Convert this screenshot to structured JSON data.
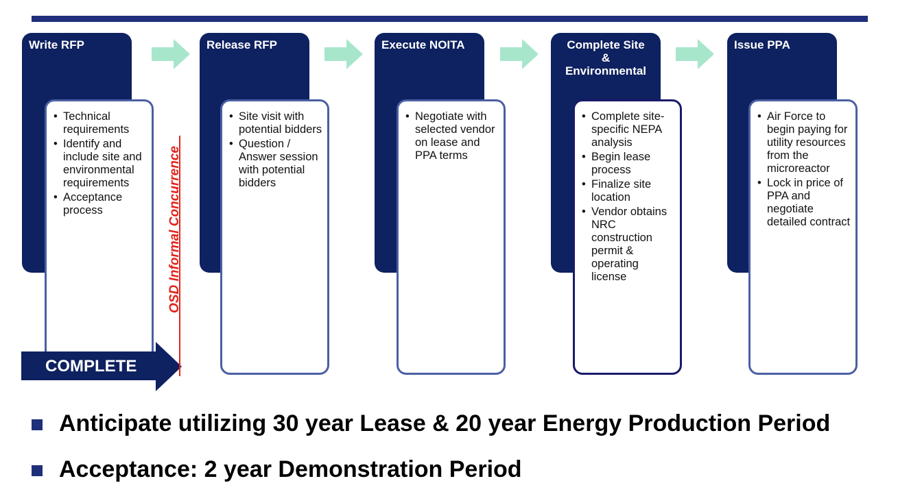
{
  "colors": {
    "stage_header": "#0e2160",
    "card_border": "#4a5fa3",
    "flow_arrow": "#a8e6cc",
    "concurrence": "#e2231a",
    "top_rule": "#1f2f7a"
  },
  "stages": [
    {
      "title_lines": [
        "Write RFP"
      ],
      "bullets": [
        "Technical requirements",
        "Identify and include site and environmental requirements",
        "Acceptance process"
      ]
    },
    {
      "title_lines": [
        "Release RFP"
      ],
      "bullets": [
        "Site visit with potential bidders",
        "Question / Answer session with potential bidders"
      ]
    },
    {
      "title_lines": [
        "Execute NOITA"
      ],
      "bullets": [
        "Negotiate with selected vendor on lease and PPA terms"
      ]
    },
    {
      "title_lines": [
        "Complete Site",
        "&",
        "Environmental"
      ],
      "bullets": [
        "Complete site-specific NEPA analysis",
        "Begin lease process",
        "Finalize site location",
        "Vendor obtains NRC construction permit & operating license"
      ]
    },
    {
      "title_lines": [
        "Issue PPA"
      ],
      "bullets": [
        "Air Force to begin paying for utility resources from the microreactor",
        "Lock in price of PPA and negotiate detailed contract"
      ]
    }
  ],
  "complete_label": "COMPLETE",
  "concurrence_label": "OSD Informal Concurrence",
  "summary_bullets": [
    "Anticipate utilizing 30 year Lease & 20 year Energy Production Period",
    "Acceptance:  2 year Demonstration Period"
  ]
}
